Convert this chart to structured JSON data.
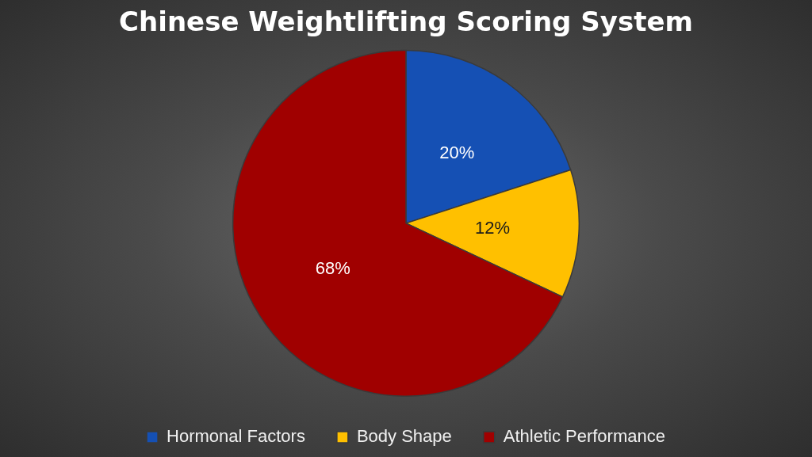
{
  "chart_data": {
    "type": "pie",
    "title": "Chinese Weightlifting Scoring System",
    "categories": [
      "Hormonal Factors",
      "Body Shape",
      "Athletic Performance"
    ],
    "values": [
      20,
      12,
      68
    ],
    "colors": [
      "#1550b4",
      "#ffc000",
      "#a00000"
    ],
    "value_labels": [
      "20%",
      "12%",
      "68%"
    ],
    "legend": "bottom"
  }
}
